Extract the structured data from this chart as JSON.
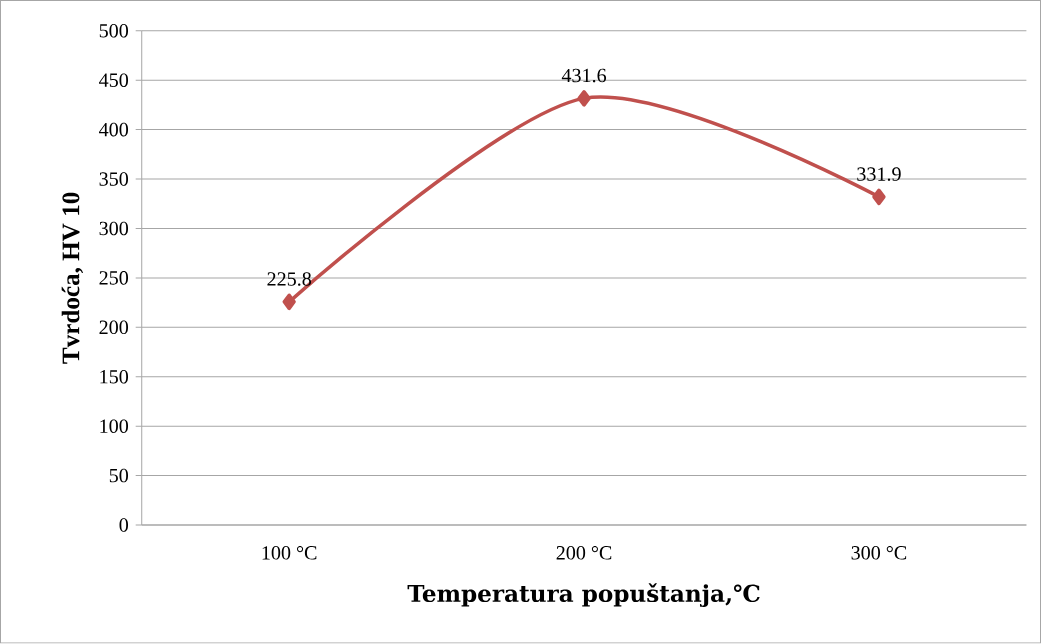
{
  "chart_data": {
    "type": "line",
    "xlabel": "Temperatura popuštanja,℃",
    "ylabel": "Tvrdoća, HV 10",
    "categories": [
      "100 °C",
      "200 °C",
      "300 °C"
    ],
    "values": [
      225.8,
      431.6,
      331.9
    ],
    "color": "#c0504d",
    "ylim": [
      0,
      500
    ],
    "yticks": [
      0,
      50,
      100,
      150,
      200,
      250,
      300,
      350,
      400,
      450,
      500
    ],
    "grid": "y",
    "marker": "diamond",
    "line_style": "solid",
    "data_labels": true
  }
}
